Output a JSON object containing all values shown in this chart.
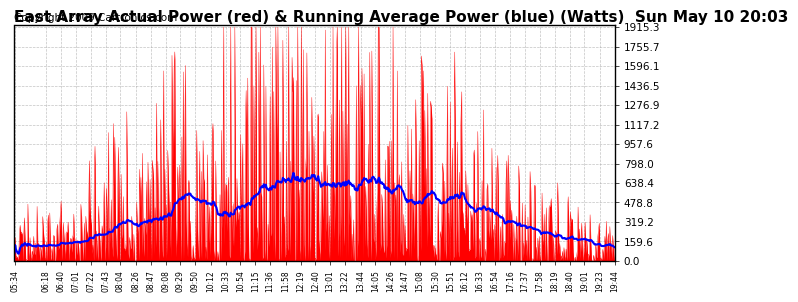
{
  "title": "East Array Actual Power (red) & Running Average Power (blue) (Watts)  Sun May 10 20:03",
  "copyright": "Copyright 2009 Cartronics.com",
  "yticks": [
    0.0,
    159.6,
    319.2,
    478.8,
    638.4,
    798.0,
    957.6,
    1117.2,
    1276.9,
    1436.5,
    1596.1,
    1755.7,
    1915.3
  ],
  "ymax": 1915.3,
  "ymin": 0.0,
  "bg_color": "#ffffff",
  "plot_bg_color": "#ffffff",
  "grid_color": "#aaaaaa",
  "actual_color": "red",
  "avg_color": "blue",
  "title_fontsize": 11,
  "copyright_fontsize": 7.5
}
